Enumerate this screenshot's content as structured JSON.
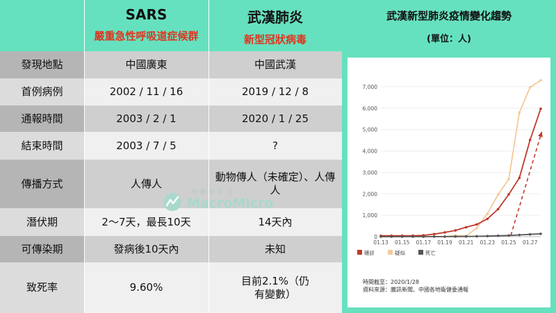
{
  "table": {
    "headers": [
      {
        "title": "SARS",
        "subtitle": "嚴重急性呼吸道症候群"
      },
      {
        "title": "武漢肺炎",
        "subtitle": "新型冠狀病毒"
      }
    ],
    "rows": [
      {
        "label": "發現地點",
        "sars": "中國廣東",
        "wuhan": "中國武漢"
      },
      {
        "label": "首例病例",
        "sars": "2002 / 11 / 16",
        "wuhan": "2019 / 12 / 8"
      },
      {
        "label": "通報時間",
        "sars": "2003 / 2 / 1",
        "wuhan": "2020 / 1 / 25"
      },
      {
        "label": "結束時間",
        "sars": "2003 / 7 / 5",
        "wuhan": "?"
      },
      {
        "label": "傳播方式",
        "sars": "人傳人",
        "wuhan": "動物傳人（未確定）、人傳人"
      },
      {
        "label": "潛伏期",
        "sars": "2～7天，最長10天",
        "wuhan": "14天內"
      },
      {
        "label": "可傳染期",
        "sars": "發病後10天內",
        "wuhan": "未知"
      },
      {
        "label": "致死率",
        "sars": "9.60%",
        "wuhan": "目前2.1%（仍有變數）"
      }
    ]
  },
  "watermark": {
    "cn": "財經M平方",
    "en": "MacroMicro"
  },
  "chart_data": {
    "type": "line",
    "title": "武漢新型肺炎疫情變化趨勢",
    "subtitle": "(單位：人)",
    "x": [
      "01.13",
      "01.14",
      "01.15",
      "01.16",
      "01.17",
      "01.18",
      "01.19",
      "01.20",
      "01.21",
      "01.22",
      "01.23",
      "01.24",
      "01.25",
      "01.26",
      "01.27",
      "01.28"
    ],
    "x_tick_labels": [
      "01.13",
      "01.15",
      "01.17",
      "01.19",
      "01.21",
      "01.23",
      "01.25",
      "01.27"
    ],
    "y_ticks": [
      0,
      1000,
      2000,
      3000,
      4000,
      5000,
      6000,
      7000
    ],
    "y_tick_labels": [
      "0",
      "1,000",
      "2,000",
      "3,000",
      "4,000",
      "5,000",
      "6,000",
      "7,000"
    ],
    "ylim": [
      0,
      7000
    ],
    "series": [
      {
        "name": "確診",
        "color": "#c0392b",
        "values": [
          41,
          41,
          41,
          45,
          62,
          121,
          198,
          291,
          440,
          571,
          830,
          1287,
          1975,
          2744,
          4515,
          5974
        ]
      },
      {
        "name": "疑似",
        "color": "#f5c99a",
        "values": [
          0,
          0,
          0,
          0,
          0,
          0,
          0,
          54,
          37,
          393,
          1072,
          1965,
          2684,
          5794,
          6973,
          9239
        ]
      },
      {
        "name": "死亡",
        "color": "#555555",
        "values": [
          1,
          1,
          2,
          2,
          2,
          3,
          3,
          6,
          9,
          17,
          25,
          41,
          56,
          80,
          106,
          132
        ]
      }
    ],
    "annotation": {
      "type": "dashed-arrow",
      "color": "#c0392b"
    },
    "legend_position": "bottom-left",
    "notes": [
      "時間截至：2020/1/28",
      "資料來源：騰訊新聞、中國各地衛健委通報"
    ]
  }
}
